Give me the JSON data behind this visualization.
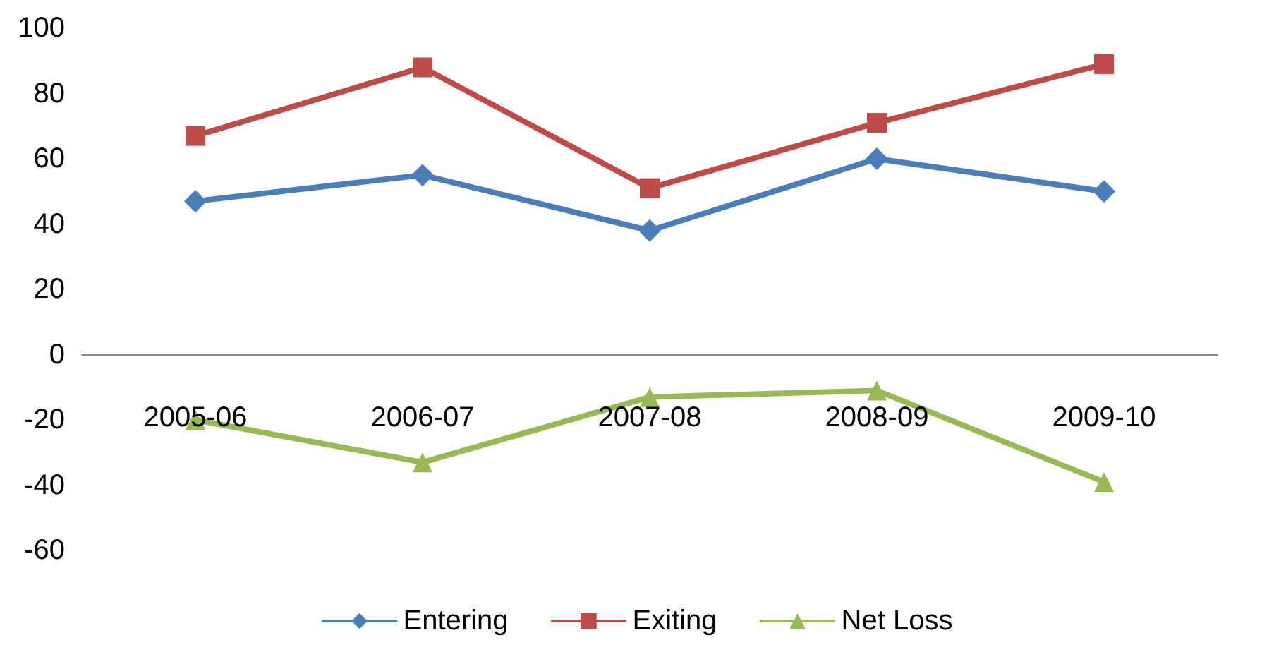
{
  "chart_data": {
    "type": "line",
    "categories": [
      "2005-06",
      "2006-07",
      "2007-08",
      "2008-09",
      "2009-10"
    ],
    "series": [
      {
        "name": "Entering",
        "color": "#4a7ebb",
        "marker": "diamond",
        "values": [
          47,
          55,
          38,
          60,
          50
        ]
      },
      {
        "name": "Exiting",
        "color": "#be4b48",
        "marker": "square",
        "values": [
          67,
          88,
          51,
          71,
          89
        ]
      },
      {
        "name": "Net Loss",
        "color": "#98b954",
        "marker": "triangle",
        "values": [
          -20,
          -33,
          -13,
          -11,
          -39
        ]
      }
    ],
    "ylim": [
      -60,
      100
    ],
    "yticks": [
      -60,
      -40,
      -20,
      0,
      20,
      40,
      60,
      80,
      100
    ],
    "grid": false,
    "legend": "bottom",
    "line_style": "solid"
  }
}
